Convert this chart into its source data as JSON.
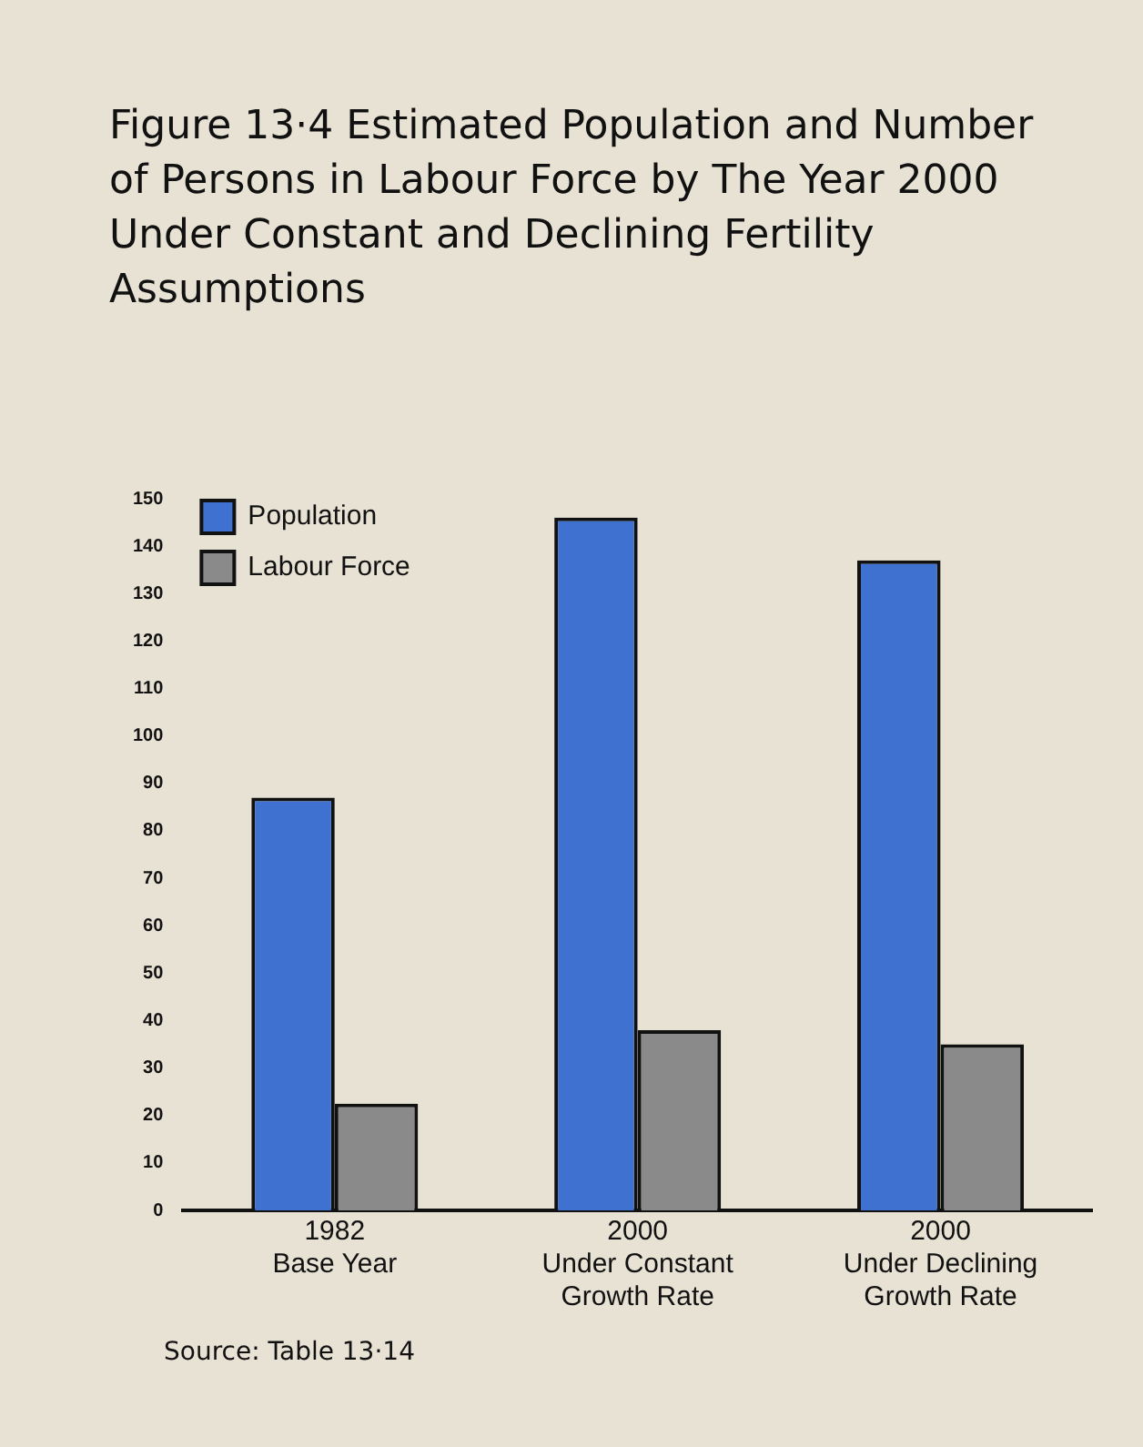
{
  "chart_data": {
    "type": "bar",
    "title": "Figure 13·4 Estimated Population and Number of Persons in Labour Force by The Year 2000 Under Constant and Declining Fertility Assumptions",
    "categories": [
      "1982\nBase Year",
      "2000\nUnder Constant\nGrowth Rate",
      "2000\nUnder Declining\nGrowth Rate"
    ],
    "series": [
      {
        "name": "Population",
        "color": "#3f72d0",
        "values": [
          87,
          146,
          137
        ]
      },
      {
        "name": "Labour Force",
        "color": "#8a8a8a",
        "values": [
          22.5,
          38,
          35
        ]
      }
    ],
    "ylim": [
      0,
      150
    ],
    "yticks": [
      0,
      10,
      20,
      30,
      40,
      50,
      60,
      70,
      80,
      90,
      100,
      110,
      120,
      130,
      140,
      150
    ],
    "grid": false,
    "legend": "top left",
    "annotations": [
      "Source: Table 13·14"
    ]
  }
}
